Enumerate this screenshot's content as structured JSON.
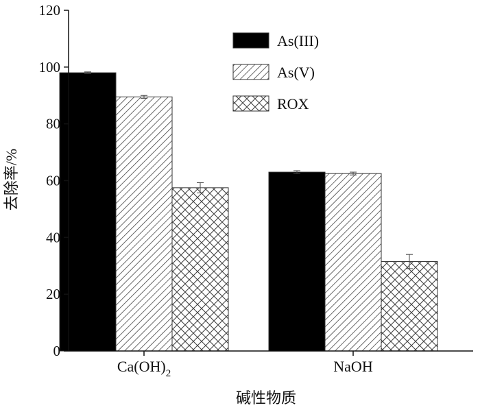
{
  "chart_data": {
    "type": "bar",
    "title": "",
    "xlabel": "碱性物质",
    "ylabel": "去除率/%",
    "ylim": [
      0,
      120
    ],
    "yticks": [
      0,
      20,
      40,
      60,
      80,
      100,
      120
    ],
    "categories": [
      {
        "main": "Ca(OH)",
        "sub": "2"
      },
      {
        "main": "NaOH",
        "sub": ""
      }
    ],
    "series": [
      {
        "name": "As(III)",
        "pattern": "solid",
        "values": [
          98.0,
          63.0
        ],
        "errors": [
          0.3,
          0.5
        ]
      },
      {
        "name": "As(V)",
        "pattern": "diagonal",
        "values": [
          89.5,
          62.5
        ],
        "errors": [
          0.5,
          0.5
        ]
      },
      {
        "name": "ROX",
        "pattern": "crosshatch",
        "values": [
          57.5,
          31.5
        ],
        "errors": [
          1.8,
          2.5
        ]
      }
    ],
    "legend_position": "top-center",
    "grid": false,
    "colors": {
      "solid": "#000000",
      "stroke": "#333333"
    }
  }
}
